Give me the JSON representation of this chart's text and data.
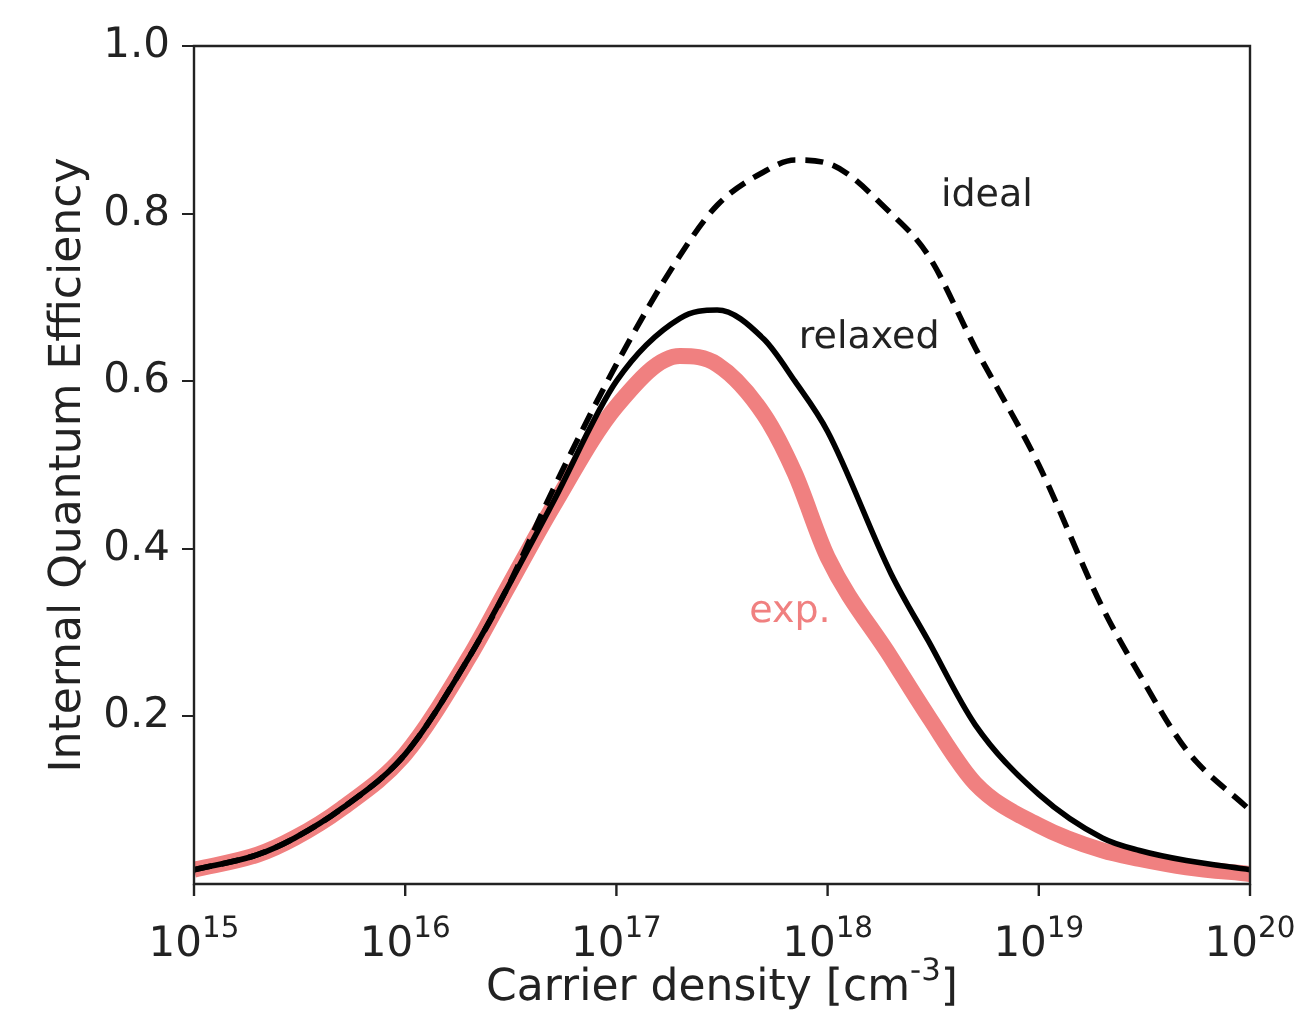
{
  "chart_data": {
    "type": "line",
    "xlabel": "Carrier density [cm$^{-3}$]",
    "ylabel": "Internal Quantum Efficiency",
    "log": "x",
    "x": [
      1000000000000000.0,
      2000000000000000.0,
      3000000000000000.0,
      5000000000000000.0,
      1e+16,
      2e+16,
      3e+16,
      5e+16,
      1e+17,
      2e+17,
      3e+17,
      5e+17,
      7e+17,
      1e+18,
      2e+18,
      3e+18,
      5e+18,
      1e+19,
      2e+19,
      3e+19,
      5e+19,
      1e+20
    ],
    "series": [
      {
        "name": "exp.",
        "color": "#f08080",
        "line_style": "solid",
        "values": [
          0.017,
          0.035,
          0.055,
          0.09,
          0.155,
          0.27,
          0.35,
          0.45,
          0.57,
          0.63,
          0.62,
          0.56,
          0.49,
          0.39,
          0.27,
          0.2,
          0.12,
          0.07,
          0.04,
          0.03,
          0.02,
          0.012
        ]
      },
      {
        "name": "relaxed",
        "color": "#000000",
        "line_style": "solid",
        "values": [
          0.017,
          0.035,
          0.055,
          0.09,
          0.155,
          0.27,
          0.35,
          0.455,
          0.6,
          0.675,
          0.685,
          0.65,
          0.6,
          0.54,
          0.37,
          0.29,
          0.19,
          0.107,
          0.055,
          0.04,
          0.028,
          0.017
        ]
      },
      {
        "name": "ideal",
        "color": "#000000",
        "line_style": "dashed",
        "values": [
          0.017,
          0.035,
          0.055,
          0.09,
          0.155,
          0.27,
          0.35,
          0.47,
          0.62,
          0.75,
          0.81,
          0.85,
          0.864,
          0.86,
          0.8,
          0.75,
          0.64,
          0.5,
          0.33,
          0.25,
          0.16,
          0.088
        ]
      }
    ],
    "xlim": [
      1000000000000000.0,
      1e+20
    ],
    "ylim": [
      0,
      1
    ],
    "xticks": [
      {
        "value": 1000000000000000.0,
        "label": "10$^{15}$"
      },
      {
        "value": 1e+16,
        "label": "10$^{16}$"
      },
      {
        "value": 1e+17,
        "label": "10$^{17}$"
      },
      {
        "value": 1e+18,
        "label": "10$^{18}$"
      },
      {
        "value": 1e+19,
        "label": "10$^{19}$"
      },
      {
        "value": 1e+20,
        "label": "10$^{20}$"
      }
    ],
    "yticks": [
      0.2,
      0.4,
      0.6,
      0.8,
      {
        "value": 1,
        "label": "1.0"
      }
    ],
    "grid": false,
    "legend": false,
    "marker": "none"
  }
}
